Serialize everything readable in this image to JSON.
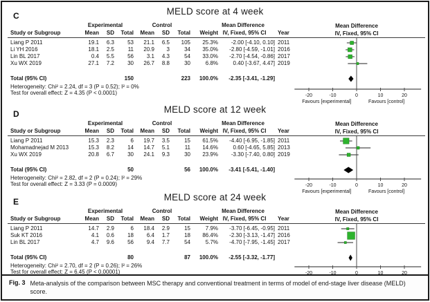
{
  "figure": {
    "caption_label": "Fig. 3",
    "caption_text": "Meta-analysis of the comparison between MSC therapy and conventional treatment in terms of model of end-stage liver disease (MELD) score."
  },
  "labels": {
    "study_header": "Study or Subgroup",
    "experimental": "Experimental",
    "control": "Control",
    "mean": "Mean",
    "sd": "SD",
    "total": "Total",
    "weight": "Weight",
    "mean_difference": "Mean Difference",
    "iv_fixed": "IV, Fixed, 95% CI",
    "year": "Year",
    "favours_left": "Favours [experimental]",
    "favours_right": "Favours [control]"
  },
  "colors": {
    "marker_green": "#2db32d",
    "marker_border": "#1a7a1a",
    "ci_line": "#4d4d4d",
    "diamond": "#000000",
    "axis": "#4d4d4d",
    "text": "#141414"
  },
  "chart_data": [
    {
      "type": "forest",
      "label": "C",
      "title": "MELD score at 4 week",
      "model": "IV, Fixed, 95% CI",
      "axis": {
        "ticks": [
          -20,
          -10,
          0,
          10,
          20
        ],
        "min": -26,
        "max": 27
      },
      "studies": [
        {
          "name": "Liang P 2011",
          "exp_mean": "19.1",
          "exp_sd": "6.3",
          "exp_total": "53",
          "ctrl_mean": "21.1",
          "ctrl_sd": "6.5",
          "ctrl_total": "105",
          "weight": "25.3%",
          "weight_pct": 25.3,
          "md": -2.0,
          "ci_low": -4.1,
          "ci_high": 0.1,
          "ci_text": "-2.00 [-4.10, 0.10]",
          "year": "2011"
        },
        {
          "name": "Li YH 2016",
          "exp_mean": "18.1",
          "exp_sd": "2.5",
          "exp_total": "11",
          "ctrl_mean": "20.9",
          "ctrl_sd": "3",
          "ctrl_total": "34",
          "weight": "35.0%",
          "weight_pct": 35.0,
          "md": -2.8,
          "ci_low": -4.59,
          "ci_high": -1.01,
          "ci_text": "-2.80 [-4.59, -1.01]",
          "year": "2016"
        },
        {
          "name": "Lin BL 2017",
          "exp_mean": "0.4",
          "exp_sd": "5.5",
          "exp_total": "56",
          "ctrl_mean": "3.1",
          "ctrl_sd": "4.3",
          "ctrl_total": "54",
          "weight": "33.0%",
          "weight_pct": 33.0,
          "md": -2.7,
          "ci_low": -4.54,
          "ci_high": -0.86,
          "ci_text": "-2.70 [-4.54, -0.86]",
          "year": "2017"
        },
        {
          "name": "Xu WX 2019",
          "exp_mean": "27.1",
          "exp_sd": "7.2",
          "exp_total": "30",
          "ctrl_mean": "26.7",
          "ctrl_sd": "8.8",
          "ctrl_total": "30",
          "weight": "6.8%",
          "weight_pct": 6.8,
          "md": 0.4,
          "ci_low": -3.67,
          "ci_high": 4.47,
          "ci_text": "0.40 [-3.67, 4.47]",
          "year": "2019"
        }
      ],
      "total": {
        "label": "Total (95% CI)",
        "exp_total": "150",
        "ctrl_total": "223",
        "weight": "100.0%",
        "md": -2.35,
        "ci_low": -3.41,
        "ci_high": -1.29,
        "ci_text": "-2.35 [-3.41, -1.29]"
      },
      "heterogeneity": "Heterogeneity: Chi² = 2.24, df = 3 (P = 0.52); I² = 0%",
      "overall_effect": "Test for overall effect: Z = 4.35 (P < 0.0001)"
    },
    {
      "type": "forest",
      "label": "D",
      "title": "MELD score at 12 week",
      "model": "IV, Fixed, 95% CI",
      "axis": {
        "ticks": [
          -20,
          -10,
          0,
          10,
          20
        ],
        "min": -26,
        "max": 27
      },
      "studies": [
        {
          "name": "Liang P 2011",
          "exp_mean": "15.3",
          "exp_sd": "2.3",
          "exp_total": "6",
          "ctrl_mean": "19.7",
          "ctrl_sd": "3.5",
          "ctrl_total": "15",
          "weight": "61.5%",
          "weight_pct": 61.5,
          "md": -4.4,
          "ci_low": -6.95,
          "ci_high": -1.85,
          "ci_text": "-4.40 [-6.95, -1.85]",
          "year": "2011"
        },
        {
          "name": "Mohamadnejad M 2013",
          "exp_mean": "15.3",
          "exp_sd": "8.2",
          "exp_total": "14",
          "ctrl_mean": "14.7",
          "ctrl_sd": "5.1",
          "ctrl_total": "11",
          "weight": "14.6%",
          "weight_pct": 14.6,
          "md": 0.6,
          "ci_low": -4.65,
          "ci_high": 5.85,
          "ci_text": "0.60 [-4.65, 5.85]",
          "year": "2013"
        },
        {
          "name": "Xu WX 2019",
          "exp_mean": "20.8",
          "exp_sd": "6.7",
          "exp_total": "30",
          "ctrl_mean": "24.1",
          "ctrl_sd": "9.3",
          "ctrl_total": "30",
          "weight": "23.9%",
          "weight_pct": 23.9,
          "md": -3.3,
          "ci_low": -7.4,
          "ci_high": 0.8,
          "ci_text": "-3.30 [-7.40, 0.80]",
          "year": "2019"
        }
      ],
      "total": {
        "label": "Total (95% CI)",
        "exp_total": "50",
        "ctrl_total": "56",
        "weight": "100.0%",
        "md": -3.41,
        "ci_low": -5.41,
        "ci_high": -1.4,
        "ci_text": "-3.41 [-5.41, -1.40]"
      },
      "heterogeneity": "Heterogeneity: Chi² = 2.82, df = 2 (P = 0.24); I² = 29%",
      "overall_effect": "Test for overall effect: Z = 3.33 (P = 0.0009)"
    },
    {
      "type": "forest",
      "label": "E",
      "title": "MELD score at 24 week",
      "model": "IV, Fixed, 95% CI",
      "axis": {
        "ticks": [
          -20,
          -10,
          0,
          10,
          20
        ],
        "min": -26,
        "max": 27
      },
      "studies": [
        {
          "name": "Liang P 2011",
          "exp_mean": "14.7",
          "exp_sd": "2.9",
          "exp_total": "6",
          "ctrl_mean": "18.4",
          "ctrl_sd": "2.9",
          "ctrl_total": "15",
          "weight": "7.9%",
          "weight_pct": 7.9,
          "md": -3.7,
          "ci_low": -6.45,
          "ci_high": -0.95,
          "ci_text": "-3.70 [-6.45, -0.95]",
          "year": "2011"
        },
        {
          "name": "Suk KT 2016",
          "exp_mean": "4.1",
          "exp_sd": "0.6",
          "exp_total": "18",
          "ctrl_mean": "6.4",
          "ctrl_sd": "1.7",
          "ctrl_total": "18",
          "weight": "86.4%",
          "weight_pct": 86.4,
          "md": -2.3,
          "ci_low": -3.13,
          "ci_high": -1.47,
          "ci_text": "-2.30 [-3.13, -1.47]",
          "year": "2016"
        },
        {
          "name": "Lin BL 2017",
          "exp_mean": "4.7",
          "exp_sd": "9.6",
          "exp_total": "56",
          "ctrl_mean": "9.4",
          "ctrl_sd": "7.7",
          "ctrl_total": "54",
          "weight": "5.7%",
          "weight_pct": 5.7,
          "md": -4.7,
          "ci_low": -7.95,
          "ci_high": -1.45,
          "ci_text": "-4.70 [-7.95, -1.45]",
          "year": "2017"
        }
      ],
      "total": {
        "label": "Total (95% CI)",
        "exp_total": "80",
        "ctrl_total": "87",
        "weight": "100.0%",
        "md": -2.55,
        "ci_low": -3.32,
        "ci_high": -1.77,
        "ci_text": "-2.55 [-3.32, -1.77]"
      },
      "heterogeneity": "Heterogeneity: Chi² = 2.70, df = 2 (P = 0.26); I² = 26%",
      "overall_effect": "Test for overall effect: Z = 6.45 (P < 0.00001)"
    }
  ]
}
